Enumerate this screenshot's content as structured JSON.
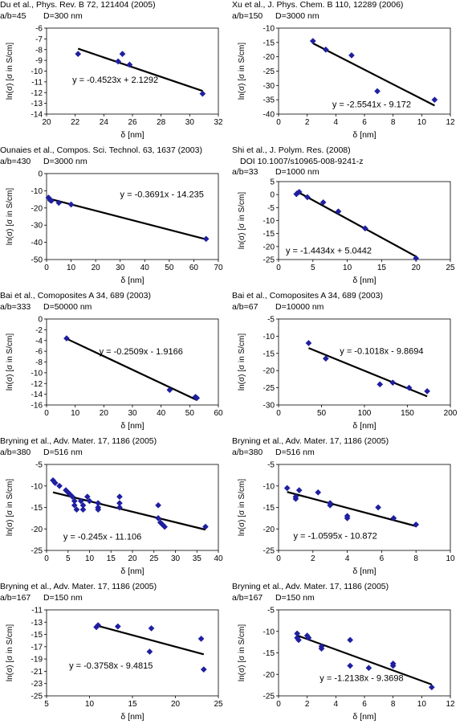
{
  "markerColor": "#1F1FA0",
  "xAxisLabel": "δ [nm]",
  "yAxisLabel": "ln(σ) [σ in S/cm]",
  "chart_data": [
    {
      "type": "scatter",
      "citation": "Du et al., Phys. Rev. B 72, 121404 (2005)",
      "aspect": "a/b=45",
      "diameter": "D=300 nm",
      "doi": "",
      "xlim": [
        20,
        32
      ],
      "xticks": [
        20,
        22,
        24,
        26,
        28,
        30,
        32
      ],
      "ylim": [
        -14,
        -6
      ],
      "yticks": [
        -6,
        -7,
        -8,
        -9,
        -10,
        -11,
        -12,
        -13,
        -14
      ],
      "xlabel": "δ [nm]",
      "ylabel": "ln(σ) [σ in S/cm]",
      "points": [
        [
          22.2,
          -8.4
        ],
        [
          25.0,
          -9.1
        ],
        [
          25.3,
          -8.4
        ],
        [
          25.8,
          -9.4
        ],
        [
          30.9,
          -12.1
        ]
      ],
      "fit": {
        "slope": -0.4523,
        "intercept": 2.1292
      },
      "equation": "y = -0.4523x + 2.1292",
      "eq_pos": [
        24.8,
        -10.8
      ]
    },
    {
      "type": "scatter",
      "citation": "Xu et al., J. Phys. Chem. B 110, 12289 (2006)",
      "aspect": "a/b=150",
      "diameter": "D=3000 nm",
      "doi": "",
      "xlim": [
        0,
        12
      ],
      "xticks": [
        0,
        2,
        4,
        6,
        8,
        10,
        12
      ],
      "ylim": [
        -40,
        -10
      ],
      "yticks": [
        -10,
        -15,
        -20,
        -25,
        -30,
        -35,
        -40
      ],
      "xlabel": "δ [nm]",
      "ylabel": "ln(σ) [σ in S/cm]",
      "points": [
        [
          2.4,
          -14.5
        ],
        [
          3.3,
          -17.5
        ],
        [
          5.1,
          -19.5
        ],
        [
          6.9,
          -32.0
        ],
        [
          10.9,
          -35.0
        ]
      ],
      "fit": {
        "slope": -2.5541,
        "intercept": -9.172
      },
      "equation": "y = -2.5541x - 9.172",
      "eq_pos": [
        6.5,
        -36.5
      ]
    },
    {
      "type": "scatter",
      "citation": "Ounaies et al., Compos. Sci. Technol. 63, 1637 (2003)",
      "aspect": "a/b=430",
      "diameter": "D=3000 nm",
      "doi": "",
      "xlim": [
        0,
        70
      ],
      "xticks": [
        0,
        10,
        20,
        30,
        40,
        50,
        60,
        70
      ],
      "ylim": [
        -50,
        0
      ],
      "yticks": [
        0,
        -10,
        -20,
        -30,
        -40,
        -50
      ],
      "xlabel": "δ [nm]",
      "ylabel": "ln(σ) [σ in S/cm]",
      "points": [
        [
          0.8,
          -14.0
        ],
        [
          1.5,
          -15.5
        ],
        [
          2.0,
          -15.8
        ],
        [
          5.0,
          -17.0
        ],
        [
          10.0,
          -18.0
        ],
        [
          65.0,
          -38.0
        ]
      ],
      "fit": {
        "slope": -0.3691,
        "intercept": -14.235
      },
      "equation": "y = -0.3691x - 14.235",
      "eq_pos": [
        47,
        -12
      ]
    },
    {
      "type": "scatter",
      "citation": "Shi et al., J. Polym. Res. (2008)",
      "aspect": "a/b=33",
      "diameter": "D=1000 nm",
      "doi": "DOI 10.1007/s10965-008-9241-z",
      "xlim": [
        0,
        25
      ],
      "xticks": [
        0,
        5,
        10,
        15,
        20,
        25
      ],
      "ylim": [
        -25,
        5
      ],
      "yticks": [
        5,
        0,
        -5,
        -10,
        -15,
        -20,
        -25
      ],
      "xlabel": "δ [nm]",
      "ylabel": "ln(σ) [σ in S/cm]",
      "points": [
        [
          2.6,
          0.2
        ],
        [
          3.0,
          1.0
        ],
        [
          4.2,
          -1.0
        ],
        [
          6.5,
          -3.0
        ],
        [
          8.7,
          -6.5
        ],
        [
          12.6,
          -13.0
        ],
        [
          20.0,
          -24.5
        ]
      ],
      "fit": {
        "slope": -1.4434,
        "intercept": 5.0442
      },
      "equation": "y = -1.4434x + 5.0442",
      "eq_pos": [
        7.3,
        -21.5
      ]
    },
    {
      "type": "scatter",
      "citation": "Bai et al., Comoposites A 34, 689 (2003)",
      "aspect": "a/b=333",
      "diameter": "D=50000 nm",
      "doi": "",
      "xlim": [
        0,
        60
      ],
      "xticks": [
        0,
        10,
        20,
        30,
        40,
        50,
        60
      ],
      "ylim": [
        -16,
        0
      ],
      "yticks": [
        0,
        -2,
        -4,
        -6,
        -8,
        -10,
        -12,
        -14,
        -16
      ],
      "xlabel": "δ [nm]",
      "ylabel": "ln(σ) [σ in S/cm]",
      "points": [
        [
          7.0,
          -3.6
        ],
        [
          43.0,
          -13.2
        ],
        [
          52.0,
          -14.5
        ],
        [
          52.5,
          -14.7
        ]
      ],
      "fit": {
        "slope": -0.2509,
        "intercept": -1.9166
      },
      "equation": "y = -0.2509x - 1.9166",
      "eq_pos": [
        33,
        -6
      ]
    },
    {
      "type": "scatter",
      "citation": "Bai et al., Comoposites A 34, 689 (2003)",
      "aspect": "a/b=67",
      "diameter": "D=10000 nm",
      "doi": "",
      "xlim": [
        0,
        200
      ],
      "xticks": [
        0,
        50,
        100,
        150,
        200
      ],
      "ylim": [
        -30,
        -5
      ],
      "yticks": [
        -5,
        -10,
        -15,
        -20,
        -25,
        -30
      ],
      "xlabel": "δ [nm]",
      "ylabel": "ln(σ) [σ in S/cm]",
      "points": [
        [
          35,
          -12.0
        ],
        [
          55,
          -16.5
        ],
        [
          118,
          -24.0
        ],
        [
          133,
          -23.5
        ],
        [
          152,
          -25.0
        ],
        [
          173,
          -26.0
        ]
      ],
      "fit": {
        "slope": -0.1018,
        "intercept": -9.8694
      },
      "equation": "y = -0.1018x - 9.8694",
      "eq_pos": [
        120,
        -14.2
      ]
    },
    {
      "type": "scatter",
      "citation": "Bryning et al., Adv. Mater. 17, 1186 (2005)",
      "aspect": "a/b=380",
      "diameter": "D=516 nm",
      "doi": "",
      "xlim": [
        0,
        40
      ],
      "xticks": [
        0,
        5,
        10,
        15,
        20,
        25,
        30,
        35,
        40
      ],
      "ylim": [
        -25,
        -5
      ],
      "yticks": [
        -5,
        -10,
        -15,
        -20,
        -25
      ],
      "xlabel": "δ [nm]",
      "ylabel": "ln(σ) [σ in S/cm]",
      "points": [
        [
          1.5,
          -8.7
        ],
        [
          2.0,
          -9.3
        ],
        [
          3.0,
          -10.0
        ],
        [
          4.5,
          -11.0
        ],
        [
          5.0,
          -11.5
        ],
        [
          5.5,
          -12.0
        ],
        [
          6.0,
          -12.5
        ],
        [
          6.5,
          -13.5
        ],
        [
          6.5,
          -14.5
        ],
        [
          7.0,
          -15.5
        ],
        [
          8.0,
          -13.5
        ],
        [
          8.5,
          -14.5
        ],
        [
          8.5,
          -15.5
        ],
        [
          9.5,
          -12.5
        ],
        [
          10.0,
          -13.5
        ],
        [
          12.0,
          -14.0
        ],
        [
          12.0,
          -15.0
        ],
        [
          12.0,
          -15.5
        ],
        [
          17.0,
          -12.5
        ],
        [
          17.0,
          -14.0
        ],
        [
          17.0,
          -15.0
        ],
        [
          26.0,
          -14.5
        ],
        [
          26.0,
          -17.5
        ],
        [
          26.5,
          -18.5
        ],
        [
          27.0,
          -19.0
        ],
        [
          27.5,
          -19.5
        ],
        [
          37.0,
          -19.5
        ]
      ],
      "fit": {
        "slope": -0.245,
        "intercept": -11.106
      },
      "equation": "y = -0.245x - 11.106",
      "eq_pos": [
        13,
        -21.7
      ]
    },
    {
      "type": "scatter",
      "citation": "Bryning et al., Adv. Mater. 17, 1186 (2005)",
      "aspect": "a/b=380",
      "diameter": "D=516 nm",
      "doi": "",
      "xlim": [
        0,
        10
      ],
      "xticks": [
        0,
        2,
        4,
        6,
        8,
        10
      ],
      "ylim": [
        -25,
        -5
      ],
      "yticks": [
        -5,
        -10,
        -15,
        -20,
        -25
      ],
      "xlabel": "δ [nm]",
      "ylabel": "ln(σ) [σ in S/cm]",
      "points": [
        [
          0.5,
          -10.5
        ],
        [
          1.0,
          -12.5
        ],
        [
          1.0,
          -13.0
        ],
        [
          1.2,
          -11.0
        ],
        [
          2.3,
          -11.5
        ],
        [
          3.0,
          -14.0
        ],
        [
          3.0,
          -14.5
        ],
        [
          4.0,
          -17.0
        ],
        [
          4.0,
          -17.5
        ],
        [
          5.8,
          -15.0
        ],
        [
          6.7,
          -17.5
        ],
        [
          8.0,
          -19.0
        ]
      ],
      "fit": {
        "slope": -1.0595,
        "intercept": -10.872
      },
      "equation": "y = -1.0595x - 10.872",
      "eq_pos": [
        3.3,
        -21.5
      ]
    },
    {
      "type": "scatter",
      "citation": "Bryning et al., Adv. Mater. 17, 1186 (2005)",
      "aspect": "a/b=167",
      "diameter": "D=150 nm",
      "doi": "",
      "xlim": [
        5,
        25
      ],
      "xticks": [
        5,
        10,
        15,
        20,
        25
      ],
      "ylim": [
        -25,
        -11
      ],
      "yticks": [
        -11,
        -13,
        -15,
        -17,
        -19,
        -21,
        -23,
        -25
      ],
      "xlabel": "δ [nm]",
      "ylabel": "ln(σ) [σ in S/cm]",
      "points": [
        [
          10.8,
          -13.8
        ],
        [
          11.0,
          -13.5
        ],
        [
          13.3,
          -13.7
        ],
        [
          17.0,
          -17.8
        ],
        [
          17.2,
          -14.0
        ],
        [
          23.0,
          -15.7
        ],
        [
          23.3,
          -20.7
        ]
      ],
      "fit": {
        "slope": -0.3758,
        "intercept": -9.4815
      },
      "equation": "y = -0.3758x - 9.4815",
      "eq_pos": [
        12.5,
        -20
      ]
    },
    {
      "type": "scatter",
      "citation": "Bryning et al., Adv. Mater. 17, 1186 (2005)",
      "aspect": "a/b=167",
      "diameter": "D=150 nm",
      "doi": "",
      "xlim": [
        0,
        12
      ],
      "xticks": [
        0,
        2,
        4,
        6,
        8,
        10,
        12
      ],
      "ylim": [
        -25,
        -5
      ],
      "yticks": [
        -5,
        -10,
        -15,
        -20,
        -25
      ],
      "xlabel": "δ [nm]",
      "ylabel": "ln(σ) [σ in S/cm]",
      "points": [
        [
          1.3,
          -10.5
        ],
        [
          1.3,
          -11.5
        ],
        [
          1.4,
          -12.0
        ],
        [
          2.0,
          -11.0
        ],
        [
          2.1,
          -11.5
        ],
        [
          3.0,
          -13.5
        ],
        [
          3.0,
          -14.0
        ],
        [
          5.0,
          -12.0
        ],
        [
          5.0,
          -18.0
        ],
        [
          6.3,
          -18.5
        ],
        [
          8.0,
          -17.5
        ],
        [
          8.0,
          -18.0
        ],
        [
          10.7,
          -23.0
        ]
      ],
      "fit": {
        "slope": -1.2138,
        "intercept": -9.3698
      },
      "equation": "y = -1.2138x - 9.3698",
      "eq_pos": [
        5.8,
        -20.8
      ]
    }
  ]
}
